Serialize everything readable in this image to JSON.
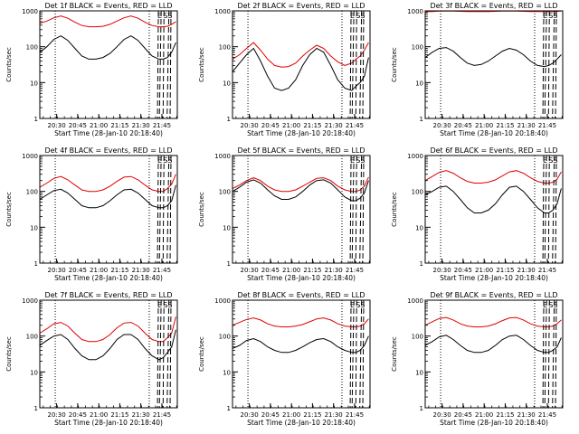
{
  "layout": {
    "rows": 3,
    "cols": 3
  },
  "common": {
    "xlabel": "Start Time (28-Jan-10 20:18:40)",
    "ylabel": "Counts/sec",
    "x_ticks": [
      {
        "t": 12,
        "label": "20:30"
      },
      {
        "t": 27,
        "label": "20:45"
      },
      {
        "t": 42,
        "label": "21:00"
      },
      {
        "t": 57,
        "label": "21:15"
      },
      {
        "t": 72,
        "label": "21:30"
      },
      {
        "t": 87,
        "label": "21:45"
      }
    ],
    "y_ticks": [
      {
        "v": 1,
        "label": "1"
      },
      {
        "v": 10,
        "label": "10"
      },
      {
        "v": 100,
        "label": "100"
      },
      {
        "v": 1000,
        "label": "1000"
      }
    ],
    "xlim": [
      0,
      98
    ],
    "ylim": [
      1,
      1000
    ],
    "yscale": "log",
    "colors": {
      "events": "#000000",
      "lld": "#e00000"
    },
    "marker_labels": [
      "E",
      "SS"
    ]
  },
  "chart_data": [
    {
      "type": "line",
      "title": "Det 1f BLACK = Events, RED = LLD",
      "x": [
        0,
        5,
        10,
        15,
        20,
        25,
        30,
        35,
        40,
        45,
        50,
        55,
        60,
        65,
        70,
        75,
        80,
        85,
        88,
        91,
        94,
        97
      ],
      "series": [
        {
          "name": "BLACK = Events",
          "color": "#000000",
          "values": [
            70,
            100,
            160,
            200,
            150,
            90,
            55,
            45,
            45,
            50,
            65,
            100,
            160,
            200,
            150,
            90,
            55,
            45,
            45,
            50,
            70,
            130
          ]
        },
        {
          "name": "RED = LLD",
          "color": "#e00000",
          "values": [
            450,
            520,
            640,
            720,
            620,
            480,
            390,
            360,
            360,
            370,
            420,
            520,
            640,
            720,
            620,
            480,
            390,
            360,
            360,
            370,
            420,
            500
          ]
        }
      ],
      "vlines_dotted": [
        11,
        78
      ],
      "vlines_dashed": [
        84.5,
        86.5,
        88.5,
        92,
        93.5
      ]
    },
    {
      "type": "line",
      "title": "Det 2f BLACK = Events, RED = LLD",
      "x": [
        0,
        5,
        10,
        15,
        20,
        25,
        30,
        35,
        40,
        45,
        50,
        55,
        60,
        65,
        70,
        75,
        80,
        85,
        88,
        91,
        94,
        97
      ],
      "series": [
        {
          "name": "BLACK = Events",
          "color": "#000000",
          "values": [
            20,
            35,
            60,
            90,
            40,
            15,
            7,
            6,
            7,
            12,
            30,
            60,
            90,
            70,
            30,
            12,
            7,
            6,
            8,
            10,
            15,
            50
          ]
        },
        {
          "name": "RED = LLD",
          "color": "#e00000",
          "values": [
            45,
            60,
            90,
            130,
            80,
            45,
            30,
            27,
            28,
            35,
            55,
            80,
            110,
            90,
            55,
            38,
            30,
            35,
            45,
            55,
            80,
            130
          ]
        }
      ],
      "vlines_dotted": [
        11,
        78
      ],
      "vlines_dashed": [
        84.5,
        86.5,
        88.5,
        92,
        93.5
      ]
    },
    {
      "type": "line",
      "title": "Det 3f BLACK = Events, RED = LLD",
      "x": [
        0,
        5,
        10,
        15,
        20,
        25,
        30,
        35,
        40,
        45,
        50,
        55,
        60,
        65,
        70,
        75,
        80,
        85,
        88,
        91,
        94,
        97
      ],
      "series": [
        {
          "name": "BLACK = Events",
          "color": "#000000",
          "values": [
            50,
            70,
            90,
            95,
            75,
            50,
            35,
            30,
            32,
            40,
            55,
            75,
            90,
            80,
            60,
            40,
            30,
            28,
            30,
            35,
            45,
            60
          ]
        },
        {
          "name": "RED = LLD",
          "color": "#e00000",
          "values": [
            950,
            960,
            980,
            990,
            980,
            970,
            960,
            955,
            955,
            960,
            970,
            980,
            990,
            980,
            970,
            960,
            955,
            955,
            950,
            960,
            970,
            980
          ]
        }
      ],
      "vlines_dotted": [
        11,
        78
      ],
      "vlines_dashed": [
        84.5,
        86.5,
        88.5,
        92,
        93.5
      ]
    },
    {
      "type": "line",
      "title": "Det 4f BLACK = Events, RED = LLD",
      "x": [
        0,
        5,
        10,
        15,
        20,
        25,
        30,
        35,
        40,
        45,
        50,
        55,
        60,
        65,
        70,
        75,
        80,
        85,
        88,
        91,
        94,
        97
      ],
      "series": [
        {
          "name": "BLACK = Events",
          "color": "#000000",
          "values": [
            60,
            80,
            105,
            115,
            90,
            60,
            40,
            35,
            35,
            40,
            55,
            80,
            110,
            115,
            90,
            60,
            40,
            35,
            35,
            40,
            55,
            150
          ]
        },
        {
          "name": "RED = LLD",
          "color": "#e00000",
          "values": [
            130,
            170,
            230,
            260,
            210,
            150,
            110,
            100,
            100,
            110,
            140,
            190,
            250,
            260,
            210,
            150,
            110,
            100,
            100,
            120,
            160,
            300
          ]
        }
      ],
      "vlines_dotted": [
        11,
        78
      ],
      "vlines_dashed": [
        84.5,
        86.5,
        88.5,
        92,
        93.5
      ]
    },
    {
      "type": "line",
      "title": "Det 5f BLACK = Events, RED = LLD",
      "x": [
        0,
        5,
        10,
        15,
        20,
        25,
        30,
        35,
        40,
        45,
        50,
        55,
        60,
        65,
        70,
        75,
        80,
        85,
        88,
        91,
        94,
        97
      ],
      "series": [
        {
          "name": "BLACK = Events",
          "color": "#000000",
          "values": [
            100,
            130,
            180,
            210,
            170,
            110,
            75,
            60,
            60,
            70,
            100,
            150,
            200,
            210,
            170,
            110,
            70,
            55,
            55,
            65,
            90,
            200
          ]
        },
        {
          "name": "RED = LLD",
          "color": "#e00000",
          "values": [
            120,
            150,
            200,
            240,
            200,
            140,
            110,
            100,
            100,
            110,
            140,
            180,
            230,
            240,
            200,
            140,
            110,
            100,
            100,
            110,
            140,
            250
          ]
        }
      ],
      "vlines_dotted": [
        11,
        78
      ],
      "vlines_dashed": [
        84.5,
        86.5,
        88.5,
        92,
        93.5
      ]
    },
    {
      "type": "line",
      "title": "Det 6f BLACK = Events, RED = LLD",
      "x": [
        0,
        5,
        10,
        15,
        20,
        25,
        30,
        35,
        40,
        45,
        50,
        55,
        60,
        65,
        70,
        75,
        80,
        85,
        88,
        91,
        94,
        97
      ],
      "series": [
        {
          "name": "BLACK = Events",
          "color": "#000000",
          "values": [
            80,
            100,
            130,
            140,
            100,
            60,
            35,
            25,
            25,
            30,
            45,
            80,
            130,
            140,
            100,
            60,
            35,
            25,
            25,
            30,
            45,
            120
          ]
        },
        {
          "name": "RED = LLD",
          "color": "#e00000",
          "values": [
            200,
            260,
            340,
            380,
            320,
            240,
            190,
            170,
            170,
            180,
            210,
            270,
            350,
            380,
            320,
            240,
            190,
            170,
            170,
            180,
            220,
            350
          ]
        }
      ],
      "vlines_dotted": [
        11,
        78
      ],
      "vlines_dashed": [
        84.5,
        86.5,
        88.5,
        92,
        93.5
      ]
    },
    {
      "type": "line",
      "title": "Det 7f BLACK = Events, RED = LLD",
      "x": [
        0,
        5,
        10,
        15,
        20,
        25,
        30,
        35,
        40,
        45,
        50,
        55,
        60,
        65,
        70,
        75,
        80,
        85,
        88,
        91,
        94,
        97
      ],
      "series": [
        {
          "name": "BLACK = Events",
          "color": "#000000",
          "values": [
            55,
            75,
            100,
            110,
            80,
            45,
            28,
            22,
            22,
            28,
            45,
            80,
            110,
            110,
            80,
            45,
            28,
            22,
            25,
            35,
            50,
            150
          ]
        },
        {
          "name": "RED = LLD",
          "color": "#e00000",
          "values": [
            120,
            160,
            220,
            240,
            190,
            120,
            80,
            70,
            70,
            80,
            110,
            170,
            230,
            240,
            190,
            120,
            80,
            70,
            70,
            90,
            120,
            350
          ]
        }
      ],
      "vlines_dotted": [
        11,
        78
      ],
      "vlines_dashed": [
        84.5,
        86.5,
        88.5,
        92,
        93.5
      ]
    },
    {
      "type": "line",
      "title": "Det 8f BLACK = Events, RED = LLD",
      "x": [
        0,
        5,
        10,
        15,
        20,
        25,
        30,
        35,
        40,
        45,
        50,
        55,
        60,
        65,
        70,
        75,
        80,
        85,
        88,
        91,
        94,
        97
      ],
      "series": [
        {
          "name": "BLACK = Events",
          "color": "#000000",
          "values": [
            45,
            55,
            75,
            85,
            70,
            50,
            40,
            35,
            35,
            40,
            50,
            65,
            80,
            85,
            70,
            50,
            40,
            35,
            35,
            40,
            55,
            100
          ]
        },
        {
          "name": "RED = LLD",
          "color": "#e00000",
          "values": [
            200,
            240,
            290,
            320,
            280,
            220,
            190,
            180,
            180,
            190,
            210,
            250,
            300,
            320,
            280,
            220,
            190,
            180,
            180,
            190,
            220,
            300
          ]
        }
      ],
      "vlines_dotted": [
        11,
        78
      ],
      "vlines_dashed": [
        84.5,
        86.5,
        88.5,
        92,
        93.5
      ]
    },
    {
      "type": "line",
      "title": "Det 9f BLACK = Events, RED = LLD",
      "x": [
        0,
        5,
        10,
        15,
        20,
        25,
        30,
        35,
        40,
        45,
        50,
        55,
        60,
        65,
        70,
        75,
        80,
        85,
        88,
        91,
        94,
        97
      ],
      "series": [
        {
          "name": "BLACK = Events",
          "color": "#000000",
          "values": [
            55,
            70,
            95,
            105,
            80,
            55,
            40,
            35,
            35,
            40,
            55,
            80,
            100,
            105,
            80,
            55,
            40,
            35,
            35,
            40,
            50,
            90
          ]
        },
        {
          "name": "RED = LLD",
          "color": "#e00000",
          "values": [
            200,
            250,
            310,
            330,
            280,
            220,
            190,
            180,
            180,
            190,
            220,
            270,
            320,
            330,
            280,
            220,
            190,
            180,
            180,
            190,
            220,
            280
          ]
        }
      ],
      "vlines_dotted": [
        11,
        78
      ],
      "vlines_dashed": [
        84.5,
        86.5,
        88.5,
        92,
        93.5
      ]
    }
  ]
}
